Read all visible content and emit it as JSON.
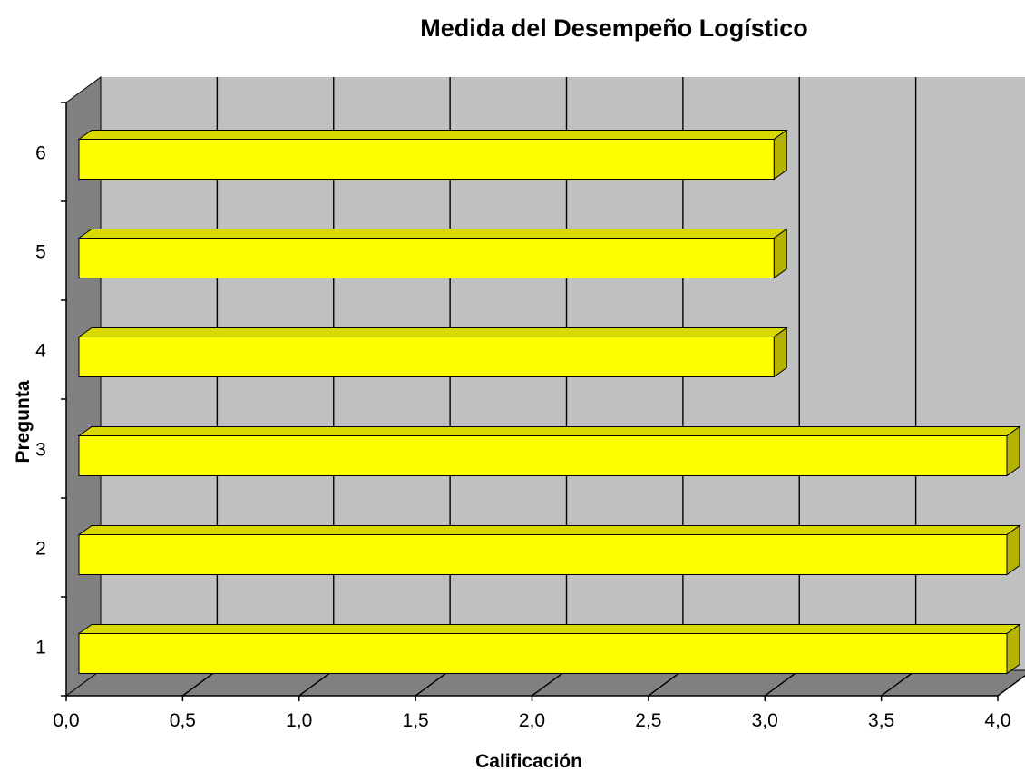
{
  "chart_data": {
    "type": "bar",
    "orientation": "horizontal",
    "style": "3d",
    "title": "Medida del Desempeño Logístico",
    "xlabel": "Calificación",
    "ylabel": "Pregunta",
    "categories": [
      "1",
      "2",
      "3",
      "4",
      "5",
      "6"
    ],
    "values": [
      4.0,
      4.0,
      4.0,
      3.0,
      3.0,
      3.0
    ],
    "xlim": [
      0,
      4
    ],
    "xticks": [
      "0,0",
      "0,5",
      "1,0",
      "1,5",
      "2,0",
      "2,5",
      "3,0",
      "3,5",
      "4,0"
    ],
    "grid": true,
    "legend": "none"
  },
  "colors": {
    "bar_front": "#ffff00",
    "bar_top": "#d9d900",
    "bar_side": "#b3b300",
    "plot_back": "#c0c0c0",
    "floor": "#808080",
    "left_wall": "#808080"
  }
}
